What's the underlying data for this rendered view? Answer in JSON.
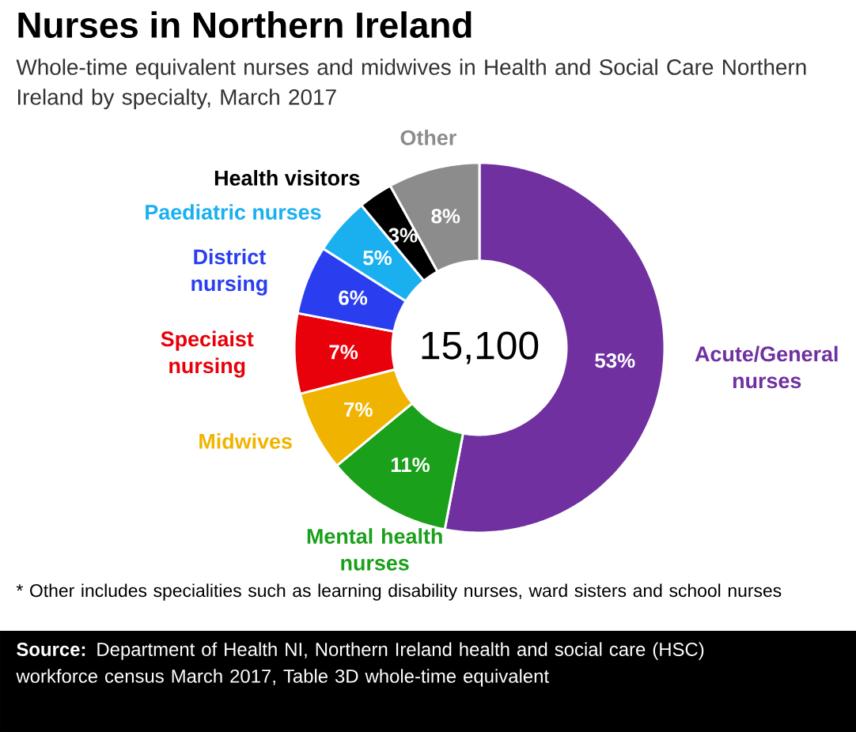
{
  "chart_data": {
    "type": "donut",
    "title": "Nurses in Northern Ireland",
    "subtitle": "Whole-time equivalent nurses and midwives in Health and Social Care Northern Ireland by specialty, March 2017",
    "categories": [
      "Acute/General nurses",
      "Mental health nurses",
      "Midwives",
      "Speciaist nursing",
      "District nursing",
      "Paediatric nurses",
      "Health visitors",
      "Other"
    ],
    "values": [
      53,
      11,
      7,
      7,
      6,
      5,
      3,
      8
    ],
    "colors": [
      "#7030a0",
      "#1aa01a",
      "#f0b400",
      "#e8000b",
      "#2a3ef0",
      "#1ab0f0",
      "#000000",
      "#8c8c8c"
    ],
    "value_labels": [
      "53%",
      "11%",
      "7%",
      "7%",
      "6%",
      "5%",
      "3%",
      "8%"
    ],
    "annotations": [
      "15,100",
      "* Other includes specialities such as learning disability nurses, ward sisters and school nurses",
      "**Source:** Department of Health NI, Northern Ireland health and social care (HSC) workforce census March 2017, Table 3D whole-time equivalent"
    ]
  }
}
